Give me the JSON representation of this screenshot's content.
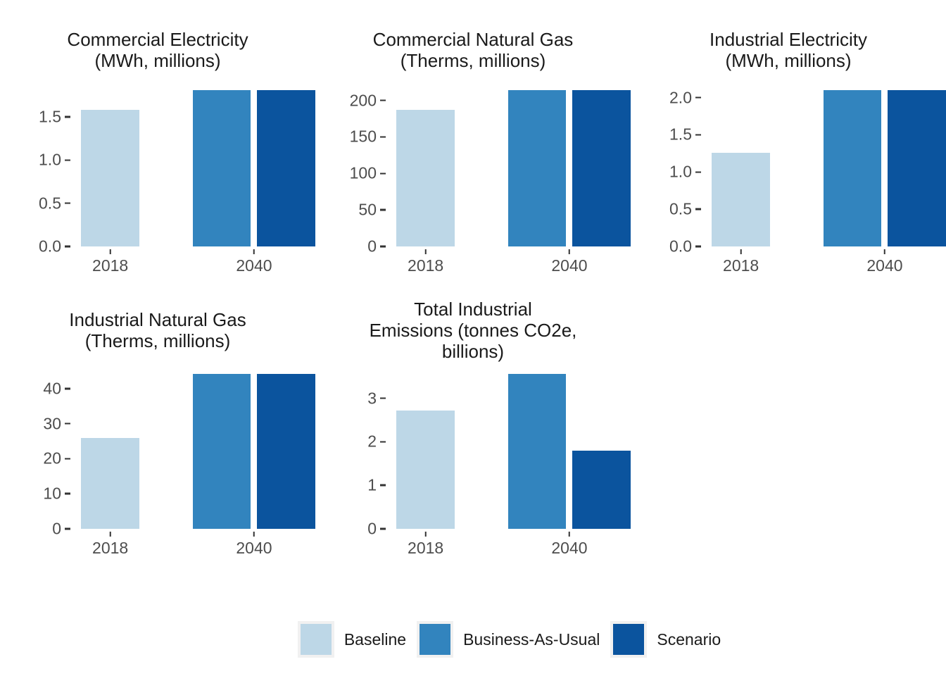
{
  "figure": {
    "background": "#ffffff"
  },
  "colors": {
    "baseline": "#bdd7e7",
    "business_as_usual": "#3284be",
    "scenario": "#0b549e",
    "title_text": "#1a1a1a",
    "axis_text": "#4d4d4d",
    "tick_mark": "#333333",
    "legend_key_bg": "#f1f1f1"
  },
  "legend": {
    "position": "bottom",
    "items": [
      {
        "label": "Baseline",
        "color": "#bdd7e7"
      },
      {
        "label": "Business-As-Usual",
        "color": "#3284be"
      },
      {
        "label": "Scenario",
        "color": "#0b549e"
      }
    ]
  },
  "chart_data": [
    {
      "type": "bar",
      "title": "Commercial Electricity (MWh, millions)",
      "title_lines": [
        "Commercial Electricity",
        "(MWh, millions)"
      ],
      "categories": [
        "2018",
        "2040"
      ],
      "series": [
        {
          "name": "Baseline",
          "category": "2018",
          "value": 1.58
        },
        {
          "name": "Business-As-Usual",
          "category": "2040",
          "value": 1.81
        },
        {
          "name": "Scenario",
          "category": "2040",
          "value": 1.81
        }
      ],
      "yticks": [
        {
          "value": 0,
          "label": "0.0"
        },
        {
          "value": 0.5,
          "label": "0.5"
        },
        {
          "value": 1,
          "label": "1.0"
        },
        {
          "value": 1.5,
          "label": "1.5"
        }
      ],
      "ylim": [
        0,
        1.81
      ],
      "grid": false
    },
    {
      "type": "bar",
      "title": "Commercial Natural Gas (Therms, millions)",
      "title_lines": [
        "Commercial Natural Gas",
        "(Therms, millions)"
      ],
      "categories": [
        "2018",
        "2040"
      ],
      "series": [
        {
          "name": "Baseline",
          "category": "2018",
          "value": 187
        },
        {
          "name": "Business-As-Usual",
          "category": "2040",
          "value": 214
        },
        {
          "name": "Scenario",
          "category": "2040",
          "value": 214
        }
      ],
      "yticks": [
        {
          "value": 0,
          "label": "0"
        },
        {
          "value": 50,
          "label": "50"
        },
        {
          "value": 100,
          "label": "100"
        },
        {
          "value": 150,
          "label": "150"
        },
        {
          "value": 200,
          "label": "200"
        }
      ],
      "ylim": [
        0,
        214
      ],
      "grid": false
    },
    {
      "type": "bar",
      "title": "Industrial Electricity (MWh, millions)",
      "title_lines": [
        "Industrial Electricity",
        "(MWh, millions)"
      ],
      "categories": [
        "2018",
        "2040"
      ],
      "series": [
        {
          "name": "Baseline",
          "category": "2018",
          "value": 1.26
        },
        {
          "name": "Business-As-Usual",
          "category": "2040",
          "value": 2.1
        },
        {
          "name": "Scenario",
          "category": "2040",
          "value": 2.1
        }
      ],
      "yticks": [
        {
          "value": 0,
          "label": "0.0"
        },
        {
          "value": 0.5,
          "label": "0.5"
        },
        {
          "value": 1,
          "label": "1.0"
        },
        {
          "value": 1.5,
          "label": "1.5"
        },
        {
          "value": 2,
          "label": "2.0"
        }
      ],
      "ylim": [
        0,
        2.1
      ],
      "grid": false
    },
    {
      "type": "bar",
      "title": "Industrial Natural Gas (Therms, millions)",
      "title_lines": [
        "Industrial Natural Gas",
        "(Therms, millions)"
      ],
      "categories": [
        "2018",
        "2040"
      ],
      "series": [
        {
          "name": "Baseline",
          "category": "2018",
          "value": 26
        },
        {
          "name": "Business-As-Usual",
          "category": "2040",
          "value": 44.2
        },
        {
          "name": "Scenario",
          "category": "2040",
          "value": 44.2
        }
      ],
      "yticks": [
        {
          "value": 0,
          "label": "0"
        },
        {
          "value": 10,
          "label": "10"
        },
        {
          "value": 20,
          "label": "20"
        },
        {
          "value": 30,
          "label": "30"
        },
        {
          "value": 40,
          "label": "40"
        }
      ],
      "ylim": [
        0,
        44.2
      ],
      "grid": false
    },
    {
      "type": "bar",
      "title": "Total Industrial Emissions (tonnes CO2e, billions)",
      "title_lines": [
        "Total Industrial",
        "Emissions (tonnes CO2e,",
        "billions)"
      ],
      "categories": [
        "2018",
        "2040"
      ],
      "series": [
        {
          "name": "Baseline",
          "category": "2018",
          "value": 2.72
        },
        {
          "name": "Business-As-Usual",
          "category": "2040",
          "value": 3.56
        },
        {
          "name": "Scenario",
          "category": "2040",
          "value": 1.8
        }
      ],
      "yticks": [
        {
          "value": 0,
          "label": "0"
        },
        {
          "value": 1,
          "label": "1"
        },
        {
          "value": 2,
          "label": "2"
        },
        {
          "value": 3,
          "label": "3"
        }
      ],
      "ylim": [
        0,
        3.56
      ],
      "grid": false
    }
  ]
}
